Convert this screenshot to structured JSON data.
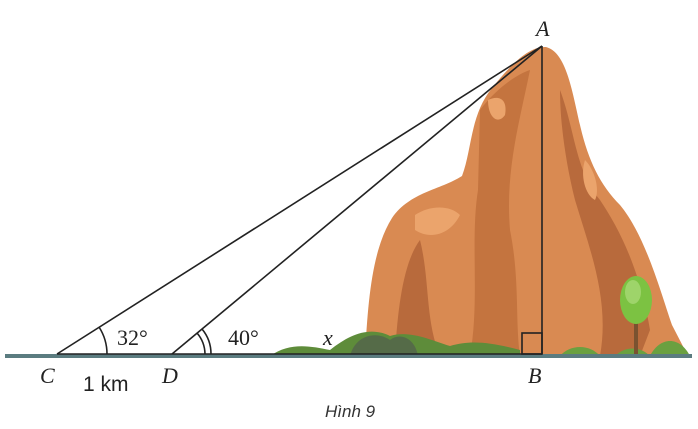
{
  "points": {
    "A": "A",
    "B": "B",
    "C": "C",
    "D": "D"
  },
  "angles": {
    "C": "32°",
    "D": "40°"
  },
  "segments": {
    "DB": "x",
    "CD": "1 km"
  },
  "caption": "Hình 9"
}
